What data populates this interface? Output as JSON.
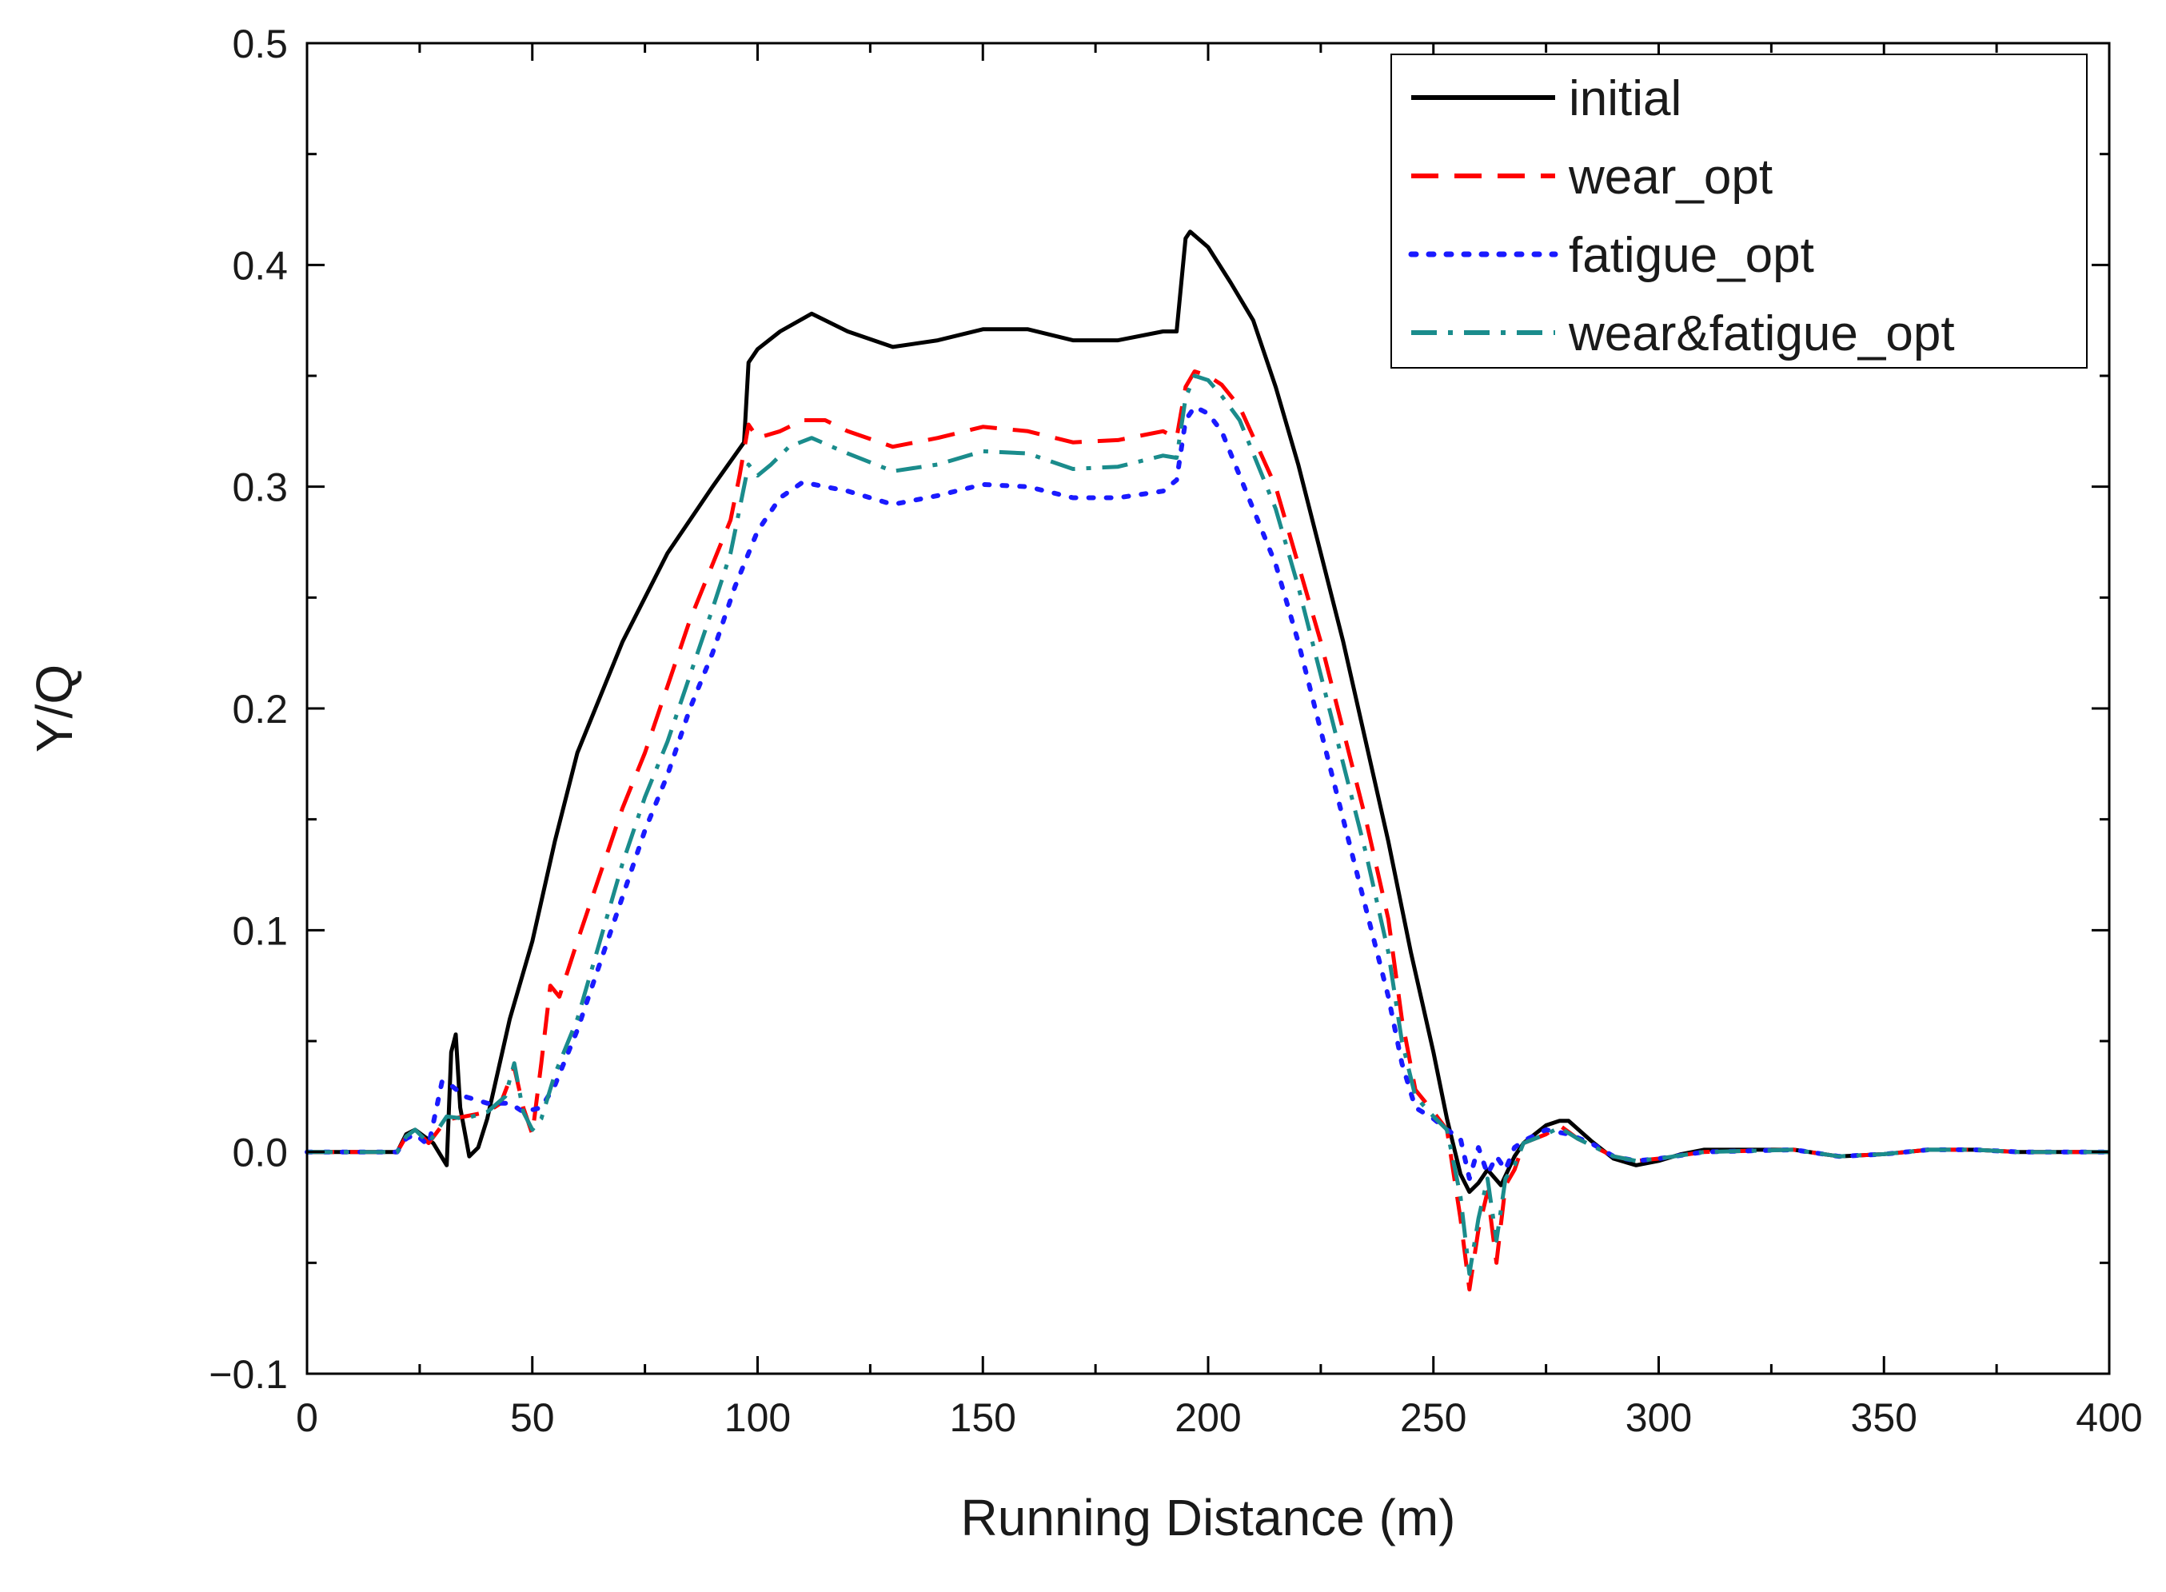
{
  "chart_data": {
    "type": "line",
    "title": "",
    "xlabel": "Running Distance (m)",
    "ylabel": "Y/Q",
    "xlim": [
      0,
      400
    ],
    "ylim": [
      -0.1,
      0.5
    ],
    "xticks": [
      0,
      50,
      100,
      150,
      200,
      250,
      300,
      350,
      400
    ],
    "xtick_labels": [
      "0",
      "50",
      "100",
      "150",
      "200",
      "250",
      "300",
      "350",
      "400"
    ],
    "yticks": [
      -0.1,
      0.0,
      0.1,
      0.2,
      0.3,
      0.4,
      0.5
    ],
    "ytick_labels": [
      "−0.1",
      "0.0",
      "0.1",
      "0.2",
      "0.3",
      "0.4",
      "0.5"
    ],
    "grid": false,
    "legend_position": "top-right",
    "series": [
      {
        "name": "initial",
        "color": "#000000",
        "dash": "solid",
        "points": [
          [
            0,
            0
          ],
          [
            20,
            0
          ],
          [
            22,
            0.008
          ],
          [
            24,
            0.01
          ],
          [
            28,
            0.004
          ],
          [
            31,
            -0.006
          ],
          [
            32,
            0.045
          ],
          [
            33,
            0.053
          ],
          [
            34,
            0.02
          ],
          [
            36,
            -0.002
          ],
          [
            38,
            0.002
          ],
          [
            40,
            0.015
          ],
          [
            45,
            0.06
          ],
          [
            50,
            0.095
          ],
          [
            55,
            0.14
          ],
          [
            60,
            0.18
          ],
          [
            70,
            0.23
          ],
          [
            80,
            0.27
          ],
          [
            90,
            0.3
          ],
          [
            97,
            0.32
          ],
          [
            98,
            0.356
          ],
          [
            100,
            0.362
          ],
          [
            105,
            0.37
          ],
          [
            112,
            0.378
          ],
          [
            120,
            0.37
          ],
          [
            130,
            0.363
          ],
          [
            140,
            0.366
          ],
          [
            150,
            0.371
          ],
          [
            160,
            0.371
          ],
          [
            170,
            0.366
          ],
          [
            180,
            0.366
          ],
          [
            190,
            0.37
          ],
          [
            193,
            0.37
          ],
          [
            195,
            0.412
          ],
          [
            196,
            0.415
          ],
          [
            200,
            0.408
          ],
          [
            205,
            0.392
          ],
          [
            210,
            0.375
          ],
          [
            215,
            0.345
          ],
          [
            220,
            0.31
          ],
          [
            225,
            0.27
          ],
          [
            230,
            0.23
          ],
          [
            235,
            0.185
          ],
          [
            240,
            0.14
          ],
          [
            245,
            0.09
          ],
          [
            250,
            0.045
          ],
          [
            253,
            0.015
          ],
          [
            256,
            -0.01
          ],
          [
            258,
            -0.018
          ],
          [
            260,
            -0.014
          ],
          [
            262,
            -0.008
          ],
          [
            265,
            -0.015
          ],
          [
            268,
            -0.002
          ],
          [
            270,
            0.004
          ],
          [
            275,
            0.012
          ],
          [
            278,
            0.014
          ],
          [
            280,
            0.014
          ],
          [
            285,
            0.005
          ],
          [
            290,
            -0.003
          ],
          [
            295,
            -0.006
          ],
          [
            300,
            -0.004
          ],
          [
            305,
            -0.001
          ],
          [
            310,
            0.001
          ],
          [
            320,
            0.001
          ],
          [
            330,
            0.001
          ],
          [
            340,
            -0.002
          ],
          [
            350,
            -0.001
          ],
          [
            360,
            0.001
          ],
          [
            370,
            0.001
          ],
          [
            380,
            0
          ],
          [
            390,
            0
          ],
          [
            400,
            0
          ]
        ]
      },
      {
        "name": "wear_opt",
        "color": "#ff0000",
        "dash": "dash",
        "points": [
          [
            0,
            0
          ],
          [
            20,
            0
          ],
          [
            22,
            0.007
          ],
          [
            24,
            0.01
          ],
          [
            27,
            0.004
          ],
          [
            30,
            0.012
          ],
          [
            32,
            0.015
          ],
          [
            35,
            0.016
          ],
          [
            40,
            0.018
          ],
          [
            43,
            0.022
          ],
          [
            46,
            0.038
          ],
          [
            48,
            0.02
          ],
          [
            50,
            0.008
          ],
          [
            52,
            0.04
          ],
          [
            54,
            0.075
          ],
          [
            56,
            0.07
          ],
          [
            60,
            0.095
          ],
          [
            65,
            0.125
          ],
          [
            70,
            0.155
          ],
          [
            75,
            0.18
          ],
          [
            80,
            0.21
          ],
          [
            85,
            0.24
          ],
          [
            90,
            0.265
          ],
          [
            94,
            0.285
          ],
          [
            96,
            0.305
          ],
          [
            98,
            0.328
          ],
          [
            100,
            0.322
          ],
          [
            105,
            0.325
          ],
          [
            110,
            0.33
          ],
          [
            115,
            0.33
          ],
          [
            120,
            0.325
          ],
          [
            130,
            0.318
          ],
          [
            140,
            0.322
          ],
          [
            150,
            0.327
          ],
          [
            160,
            0.325
          ],
          [
            170,
            0.32
          ],
          [
            180,
            0.321
          ],
          [
            190,
            0.325
          ],
          [
            193,
            0.322
          ],
          [
            195,
            0.345
          ],
          [
            197,
            0.352
          ],
          [
            200,
            0.35
          ],
          [
            203,
            0.346
          ],
          [
            207,
            0.336
          ],
          [
            211,
            0.318
          ],
          [
            215,
            0.3
          ],
          [
            220,
            0.265
          ],
          [
            225,
            0.23
          ],
          [
            230,
            0.19
          ],
          [
            235,
            0.15
          ],
          [
            240,
            0.105
          ],
          [
            243,
            0.06
          ],
          [
            246,
            0.028
          ],
          [
            250,
            0.018
          ],
          [
            253,
            0.01
          ],
          [
            256,
            -0.03
          ],
          [
            258,
            -0.062
          ],
          [
            260,
            -0.035
          ],
          [
            262,
            -0.018
          ],
          [
            264,
            -0.05
          ],
          [
            266,
            -0.015
          ],
          [
            268,
            -0.008
          ],
          [
            270,
            0.004
          ],
          [
            275,
            0.008
          ],
          [
            278,
            0.012
          ],
          [
            282,
            0.006
          ],
          [
            290,
            -0.002
          ],
          [
            295,
            -0.004
          ],
          [
            300,
            -0.003
          ],
          [
            310,
            0
          ],
          [
            330,
            0.001
          ],
          [
            340,
            -0.002
          ],
          [
            350,
            -0.001
          ],
          [
            360,
            0.001
          ],
          [
            370,
            0.001
          ],
          [
            380,
            0
          ],
          [
            400,
            0
          ]
        ]
      },
      {
        "name": "fatigue_opt",
        "color": "#1a1aff",
        "dash": "dot",
        "points": [
          [
            0,
            0
          ],
          [
            20,
            0
          ],
          [
            22,
            0.006
          ],
          [
            24,
            0.008
          ],
          [
            27,
            0.003
          ],
          [
            30,
            0.032
          ],
          [
            32,
            0.03
          ],
          [
            35,
            0.025
          ],
          [
            40,
            0.022
          ],
          [
            45,
            0.022
          ],
          [
            48,
            0.018
          ],
          [
            52,
            0.02
          ],
          [
            55,
            0.03
          ],
          [
            60,
            0.055
          ],
          [
            65,
            0.085
          ],
          [
            70,
            0.115
          ],
          [
            75,
            0.145
          ],
          [
            80,
            0.17
          ],
          [
            85,
            0.2
          ],
          [
            90,
            0.225
          ],
          [
            95,
            0.255
          ],
          [
            100,
            0.28
          ],
          [
            105,
            0.295
          ],
          [
            110,
            0.302
          ],
          [
            120,
            0.298
          ],
          [
            130,
            0.292
          ],
          [
            140,
            0.296
          ],
          [
            150,
            0.301
          ],
          [
            160,
            0.3
          ],
          [
            170,
            0.295
          ],
          [
            180,
            0.295
          ],
          [
            190,
            0.298
          ],
          [
            193,
            0.303
          ],
          [
            195,
            0.33
          ],
          [
            197,
            0.336
          ],
          [
            200,
            0.333
          ],
          [
            203,
            0.325
          ],
          [
            207,
            0.305
          ],
          [
            211,
            0.285
          ],
          [
            215,
            0.265
          ],
          [
            220,
            0.23
          ],
          [
            225,
            0.19
          ],
          [
            230,
            0.15
          ],
          [
            235,
            0.11
          ],
          [
            240,
            0.07
          ],
          [
            243,
            0.04
          ],
          [
            246,
            0.02
          ],
          [
            250,
            0.015
          ],
          [
            253,
            0.01
          ],
          [
            256,
            0.006
          ],
          [
            258,
            -0.012
          ],
          [
            260,
            0.002
          ],
          [
            262,
            -0.01
          ],
          [
            264,
            -0.002
          ],
          [
            266,
            -0.008
          ],
          [
            268,
            0.002
          ],
          [
            270,
            0.005
          ],
          [
            275,
            0.01
          ],
          [
            280,
            0.008
          ],
          [
            285,
            0.004
          ],
          [
            290,
            -0.002
          ],
          [
            295,
            -0.004
          ],
          [
            300,
            -0.003
          ],
          [
            310,
            0
          ],
          [
            330,
            0.001
          ],
          [
            340,
            -0.002
          ],
          [
            350,
            -0.001
          ],
          [
            360,
            0.001
          ],
          [
            370,
            0.001
          ],
          [
            380,
            0
          ],
          [
            400,
            0
          ]
        ]
      },
      {
        "name": "wear&fatigue_opt",
        "color": "#1a8c8c",
        "dash": "dashdot",
        "points": [
          [
            0,
            0
          ],
          [
            20,
            0
          ],
          [
            22,
            0.007
          ],
          [
            24,
            0.01
          ],
          [
            27,
            0.004
          ],
          [
            29,
            0.01
          ],
          [
            31,
            0.016
          ],
          [
            35,
            0.015
          ],
          [
            40,
            0.018
          ],
          [
            44,
            0.025
          ],
          [
            46,
            0.04
          ],
          [
            48,
            0.018
          ],
          [
            50,
            0.01
          ],
          [
            52,
            0.015
          ],
          [
            55,
            0.035
          ],
          [
            60,
            0.06
          ],
          [
            65,
            0.095
          ],
          [
            70,
            0.13
          ],
          [
            75,
            0.16
          ],
          [
            80,
            0.185
          ],
          [
            85,
            0.215
          ],
          [
            90,
            0.245
          ],
          [
            94,
            0.27
          ],
          [
            96,
            0.29
          ],
          [
            98,
            0.31
          ],
          [
            100,
            0.305
          ],
          [
            103,
            0.31
          ],
          [
            107,
            0.318
          ],
          [
            112,
            0.322
          ],
          [
            120,
            0.315
          ],
          [
            130,
            0.307
          ],
          [
            140,
            0.31
          ],
          [
            150,
            0.316
          ],
          [
            160,
            0.315
          ],
          [
            170,
            0.308
          ],
          [
            180,
            0.309
          ],
          [
            190,
            0.314
          ],
          [
            193,
            0.313
          ],
          [
            195,
            0.34
          ],
          [
            197,
            0.35
          ],
          [
            200,
            0.348
          ],
          [
            203,
            0.341
          ],
          [
            207,
            0.33
          ],
          [
            211,
            0.31
          ],
          [
            215,
            0.29
          ],
          [
            220,
            0.255
          ],
          [
            225,
            0.215
          ],
          [
            230,
            0.175
          ],
          [
            235,
            0.135
          ],
          [
            240,
            0.09
          ],
          [
            243,
            0.05
          ],
          [
            246,
            0.025
          ],
          [
            250,
            0.016
          ],
          [
            253,
            0.01
          ],
          [
            256,
            -0.02
          ],
          [
            258,
            -0.055
          ],
          [
            260,
            -0.03
          ],
          [
            262,
            -0.012
          ],
          [
            264,
            -0.04
          ],
          [
            266,
            -0.012
          ],
          [
            268,
            -0.006
          ],
          [
            270,
            0.004
          ],
          [
            275,
            0.008
          ],
          [
            278,
            0.011
          ],
          [
            282,
            0.006
          ],
          [
            290,
            -0.002
          ],
          [
            295,
            -0.004
          ],
          [
            300,
            -0.003
          ],
          [
            310,
            0
          ],
          [
            330,
            0.001
          ],
          [
            340,
            -0.002
          ],
          [
            350,
            -0.001
          ],
          [
            360,
            0.001
          ],
          [
            370,
            0.001
          ],
          [
            380,
            0
          ],
          [
            400,
            0
          ]
        ]
      }
    ]
  }
}
